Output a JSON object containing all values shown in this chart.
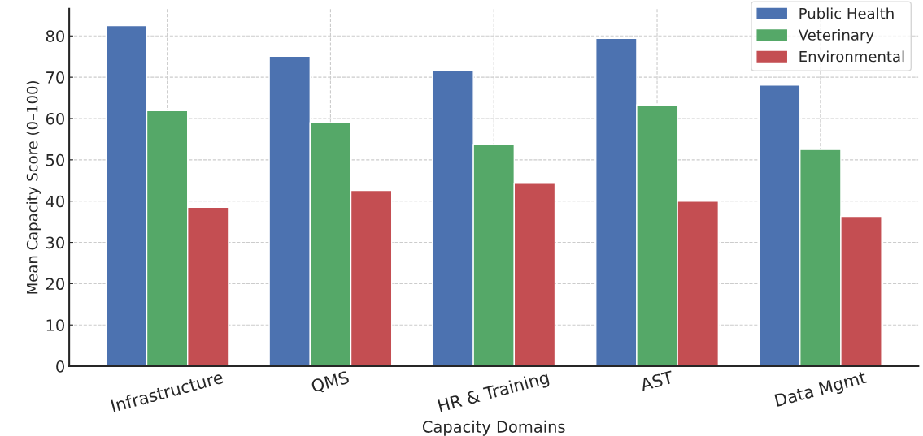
{
  "chart_data": {
    "type": "bar",
    "xlabel": "Capacity Domains",
    "ylabel": "Mean Capacity Score (0–100)",
    "categories": [
      "Infrastructure",
      "QMS",
      "HR & Training",
      "AST",
      "Data Mgmt"
    ],
    "series": [
      {
        "name": "Public Health",
        "color": "#4c72b0",
        "values": [
          82.5,
          75.1,
          71.6,
          79.4,
          68.1
        ]
      },
      {
        "name": "Veterinary",
        "color": "#55a868",
        "values": [
          61.9,
          59.0,
          53.7,
          63.3,
          52.5
        ]
      },
      {
        "name": "Environmental",
        "color": "#c44e52",
        "values": [
          38.5,
          42.6,
          44.3,
          40.0,
          36.3
        ]
      }
    ],
    "ylim": [
      0,
      86.6
    ],
    "yticks": [
      0,
      10,
      20,
      30,
      40,
      50,
      60,
      70,
      80
    ],
    "grid": true,
    "legend": "top right"
  }
}
